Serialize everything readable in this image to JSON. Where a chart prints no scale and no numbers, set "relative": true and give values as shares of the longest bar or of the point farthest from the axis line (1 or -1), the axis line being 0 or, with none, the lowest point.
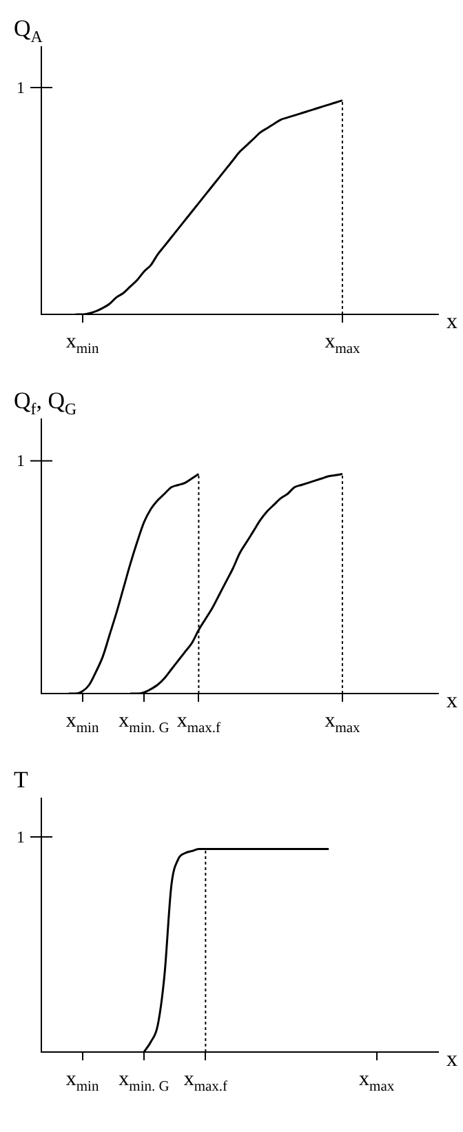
{
  "chart_data": [
    {
      "type": "line",
      "ylabel": "Q$_{A}$",
      "xlabel": "x",
      "relative": true,
      "annotations": [
        "1"
      ],
      "marker": "none",
      "line_style": "solid",
      "legend": false,
      "grid": false,
      "categories": [
        null,
        null,
        null,
        null,
        null,
        null,
        "x$_{min}$",
        null,
        null,
        null,
        null,
        null,
        null,
        null,
        null,
        null,
        null,
        null,
        null,
        null,
        null,
        null,
        null,
        null,
        null,
        null,
        null,
        null,
        null,
        null,
        null,
        null,
        null,
        null,
        null,
        null,
        null,
        null,
        null,
        null,
        null,
        null,
        null,
        null,
        "x$_{max}$",
        null,
        null,
        null,
        null,
        null,
        null,
        null,
        null,
        null,
        null,
        null,
        null,
        null,
        null
      ],
      "series": [
        {
          "color": "#000000",
          "values": [
            null,
            null,
            null,
            null,
            null,
            0,
            0,
            0.005,
            0.015,
            0.03,
            0.05,
            0.08,
            0.1,
            0.13,
            0.16,
            0.2,
            0.23,
            0.28,
            0.32,
            0.36,
            0.4,
            0.44,
            0.48,
            0.52,
            0.56,
            0.6,
            0.64,
            0.68,
            0.72,
            0.76,
            0.79,
            0.82,
            0.85,
            0.87,
            0.89,
            0.91,
            0.92,
            0.93,
            0.94,
            0.95,
            0.96,
            0.97,
            0.98,
            0.99,
            1,
            null,
            null,
            null,
            null,
            null,
            null,
            null,
            null,
            null,
            null,
            null,
            null,
            null,
            null
          ]
        }
      ],
      "ref_lines": [
        {
          "axis": "x",
          "value": "x$_{max}$",
          "line_style": "dotted"
        }
      ]
    },
    {
      "type": "line",
      "ylabel": "Q$_{f}$, Q$_{G}$",
      "xlabel": "x",
      "relative": true,
      "annotations": [
        "1"
      ],
      "marker": "none",
      "line_style": "solid",
      "legend": false,
      "grid": false,
      "categories": [
        null,
        null,
        null,
        null,
        null,
        null,
        "x$_{min}$",
        null,
        null,
        null,
        null,
        null,
        null,
        null,
        null,
        "x$_{min. G}$",
        null,
        null,
        null,
        null,
        null,
        null,
        null,
        "x$_{max.f}$",
        null,
        null,
        null,
        null,
        null,
        null,
        null,
        null,
        null,
        null,
        null,
        null,
        null,
        null,
        null,
        null,
        null,
        null,
        null,
        null,
        "x$_{max}$",
        null,
        null,
        null,
        null,
        null,
        null,
        null,
        null,
        null,
        null,
        null,
        null,
        null,
        null
      ],
      "series": [
        {
          "color": "#000000",
          "values": [
            null,
            null,
            null,
            null,
            0,
            0,
            0.01,
            0.04,
            0.1,
            0.17,
            0.27,
            0.37,
            0.48,
            0.59,
            0.69,
            0.78,
            0.84,
            0.88,
            0.91,
            0.94,
            0.95,
            0.96,
            0.98,
            1,
            null,
            null,
            null,
            null,
            null,
            null,
            null,
            null,
            null,
            null,
            null,
            null,
            null,
            null,
            null,
            null,
            null,
            null,
            null,
            null,
            null,
            null,
            null,
            null,
            null,
            null,
            null,
            null,
            null,
            null,
            null,
            null,
            null,
            null,
            null
          ]
        },
        {
          "color": "#000000",
          "values": [
            null,
            null,
            null,
            null,
            null,
            null,
            null,
            null,
            null,
            null,
            null,
            null,
            null,
            0,
            0,
            0.005,
            0.02,
            0.04,
            0.07,
            0.11,
            0.15,
            0.19,
            0.23,
            0.29,
            0.34,
            0.39,
            0.45,
            0.51,
            0.57,
            0.64,
            0.69,
            0.74,
            0.79,
            0.83,
            0.86,
            0.89,
            0.91,
            0.94,
            0.95,
            0.96,
            0.97,
            0.98,
            0.99,
            0.995,
            1,
            null,
            null,
            null,
            null,
            null,
            null,
            null,
            null,
            null,
            null,
            null,
            null,
            null,
            null
          ]
        }
      ],
      "ref_lines": [
        {
          "axis": "x",
          "value": "x$_{max.f}$",
          "line_style": "dotted"
        },
        {
          "axis": "x",
          "value": "x$_{max}$",
          "line_style": "dotted"
        }
      ]
    },
    {
      "type": "line",
      "ylabel": "T",
      "xlabel": "x",
      "relative": true,
      "annotations": [
        "1"
      ],
      "marker": "none",
      "line_style": "solid",
      "legend": false,
      "grid": false,
      "categories": [
        null,
        null,
        null,
        null,
        null,
        null,
        "x$_{min}$",
        null,
        null,
        null,
        null,
        null,
        null,
        null,
        null,
        "x$_{min. G}$",
        null,
        null,
        null,
        null,
        null,
        null,
        null,
        null,
        "x$_{max.f}$",
        null,
        null,
        null,
        null,
        null,
        null,
        null,
        null,
        null,
        null,
        null,
        null,
        null,
        null,
        null,
        null,
        null,
        null,
        null,
        null,
        null,
        null,
        null,
        null,
        "x$_{max}$",
        null,
        null,
        null,
        null,
        null,
        null,
        null,
        null,
        null
      ],
      "series": [
        {
          "color": "#000000",
          "values": [
            null,
            null,
            null,
            null,
            null,
            null,
            null,
            null,
            null,
            null,
            null,
            null,
            null,
            null,
            null,
            0,
            0.05,
            0.13,
            0.38,
            0.82,
            0.95,
            0.98,
            0.99,
            1,
            1,
            1,
            1,
            1,
            1,
            1,
            1,
            1,
            1,
            1,
            1,
            1,
            1,
            1,
            1,
            1,
            1,
            1,
            1,
            null,
            null,
            null,
            null,
            null,
            null,
            null,
            null,
            null,
            null,
            null,
            null,
            null,
            null,
            null,
            null
          ]
        }
      ],
      "ref_lines": [
        {
          "axis": "x",
          "value": "x$_{max.f}$",
          "line_style": "dotted"
        }
      ]
    }
  ]
}
